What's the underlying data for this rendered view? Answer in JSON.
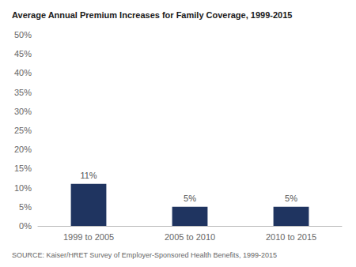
{
  "chart_data": {
    "type": "bar",
    "title": "Average Annual Premium Increases for Family Coverage, 1999-2015",
    "annotation": "SOURCE: Kaiser/HRET Survey of Employer-Sponsored Health Benefits, 1999-2015",
    "categories": [
      "1999 to 2005",
      "2005 to 2010",
      "2010 to 2015"
    ],
    "values": [
      0.11,
      0.05,
      0.05
    ],
    "value_labels": [
      "11%",
      "5%",
      "5%"
    ],
    "data_labels": true,
    "color": "#1f3460",
    "ylim": [
      0,
      0.5
    ],
    "yticks": [
      {
        "value": 0.0,
        "label": "0%"
      },
      {
        "value": 0.05,
        "label": "5%"
      },
      {
        "value": 0.1,
        "label": "10%"
      },
      {
        "value": 0.15,
        "label": "15%"
      },
      {
        "value": 0.2,
        "label": "20%"
      },
      {
        "value": 0.25,
        "label": "25%"
      },
      {
        "value": 0.3,
        "label": "30%"
      },
      {
        "value": 0.35,
        "label": "35%"
      },
      {
        "value": 0.4,
        "label": "40%"
      },
      {
        "value": 0.45,
        "label": "45%"
      },
      {
        "value": 0.5,
        "label": "50%"
      }
    ],
    "grid": false
  }
}
